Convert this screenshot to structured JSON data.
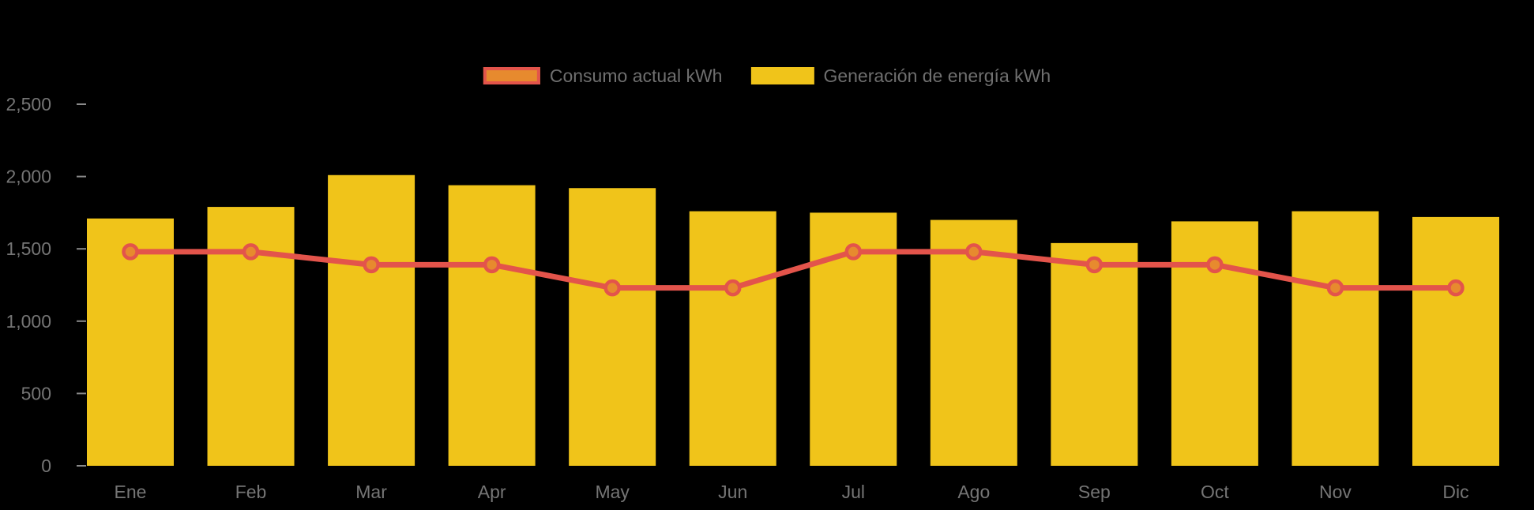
{
  "chart_data": {
    "type": "combo",
    "subtype": "bar+line",
    "categories": [
      "Ene",
      "Feb",
      "Mar",
      "Apr",
      "May",
      "Jun",
      "Jul",
      "Ago",
      "Sep",
      "Oct",
      "Nov",
      "Dic"
    ],
    "series": [
      {
        "name": "Consumo actual kWh",
        "type": "line",
        "color": "#E3544B",
        "marker_color": "#E78A2E",
        "values": [
          1480,
          1480,
          1390,
          1390,
          1230,
          1230,
          1480,
          1480,
          1390,
          1390,
          1230,
          1230
        ]
      },
      {
        "name": "Generación de energía kWh",
        "type": "bar",
        "color": "#F0C41A",
        "values": [
          1710,
          1790,
          2010,
          1940,
          1920,
          1760,
          1750,
          1700,
          1540,
          1690,
          1760,
          1720
        ]
      }
    ],
    "xlabel": "",
    "ylabel": "",
    "title": "",
    "ylim": [
      0,
      2500
    ],
    "y_ticks": [
      0,
      500,
      1000,
      1500,
      2000,
      2500
    ],
    "y_tick_labels": [
      "0",
      "500",
      "1,000",
      "1,500",
      "2,000",
      "2,500"
    ],
    "grid": false,
    "legend_position": "top",
    "axis_text_color": "#757575",
    "background_color": "#000000"
  }
}
